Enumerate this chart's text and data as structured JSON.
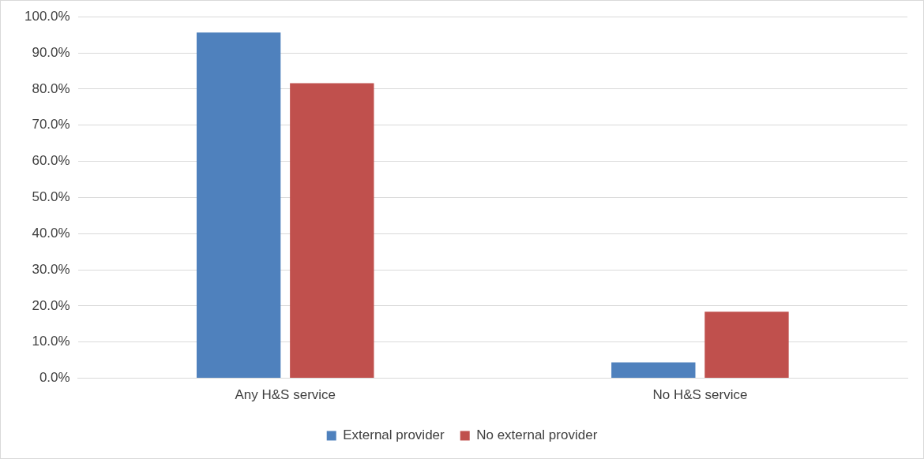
{
  "chart_data": {
    "type": "bar",
    "categories": [
      "Any H&S service",
      "No H&S service"
    ],
    "series": [
      {
        "name": "External provider",
        "color": "#4f81bd",
        "values": [
          95.6,
          4.4
        ]
      },
      {
        "name": "No external provider",
        "color": "#c0504d",
        "values": [
          81.6,
          18.4
        ]
      }
    ],
    "ylim": [
      0,
      100
    ],
    "yticks": [
      {
        "value": 0,
        "label": "0.0%"
      },
      {
        "value": 10,
        "label": "10.0%"
      },
      {
        "value": 20,
        "label": "20.0%"
      },
      {
        "value": 30,
        "label": "30.0%"
      },
      {
        "value": 40,
        "label": "40.0%"
      },
      {
        "value": 50,
        "label": "50.0%"
      },
      {
        "value": 60,
        "label": "60.0%"
      },
      {
        "value": 70,
        "label": "70.0%"
      },
      {
        "value": 80,
        "label": "80.0%"
      },
      {
        "value": 90,
        "label": "90.0%"
      },
      {
        "value": 100,
        "label": "100.0%"
      }
    ],
    "grid": "y",
    "legend": "bottom"
  }
}
